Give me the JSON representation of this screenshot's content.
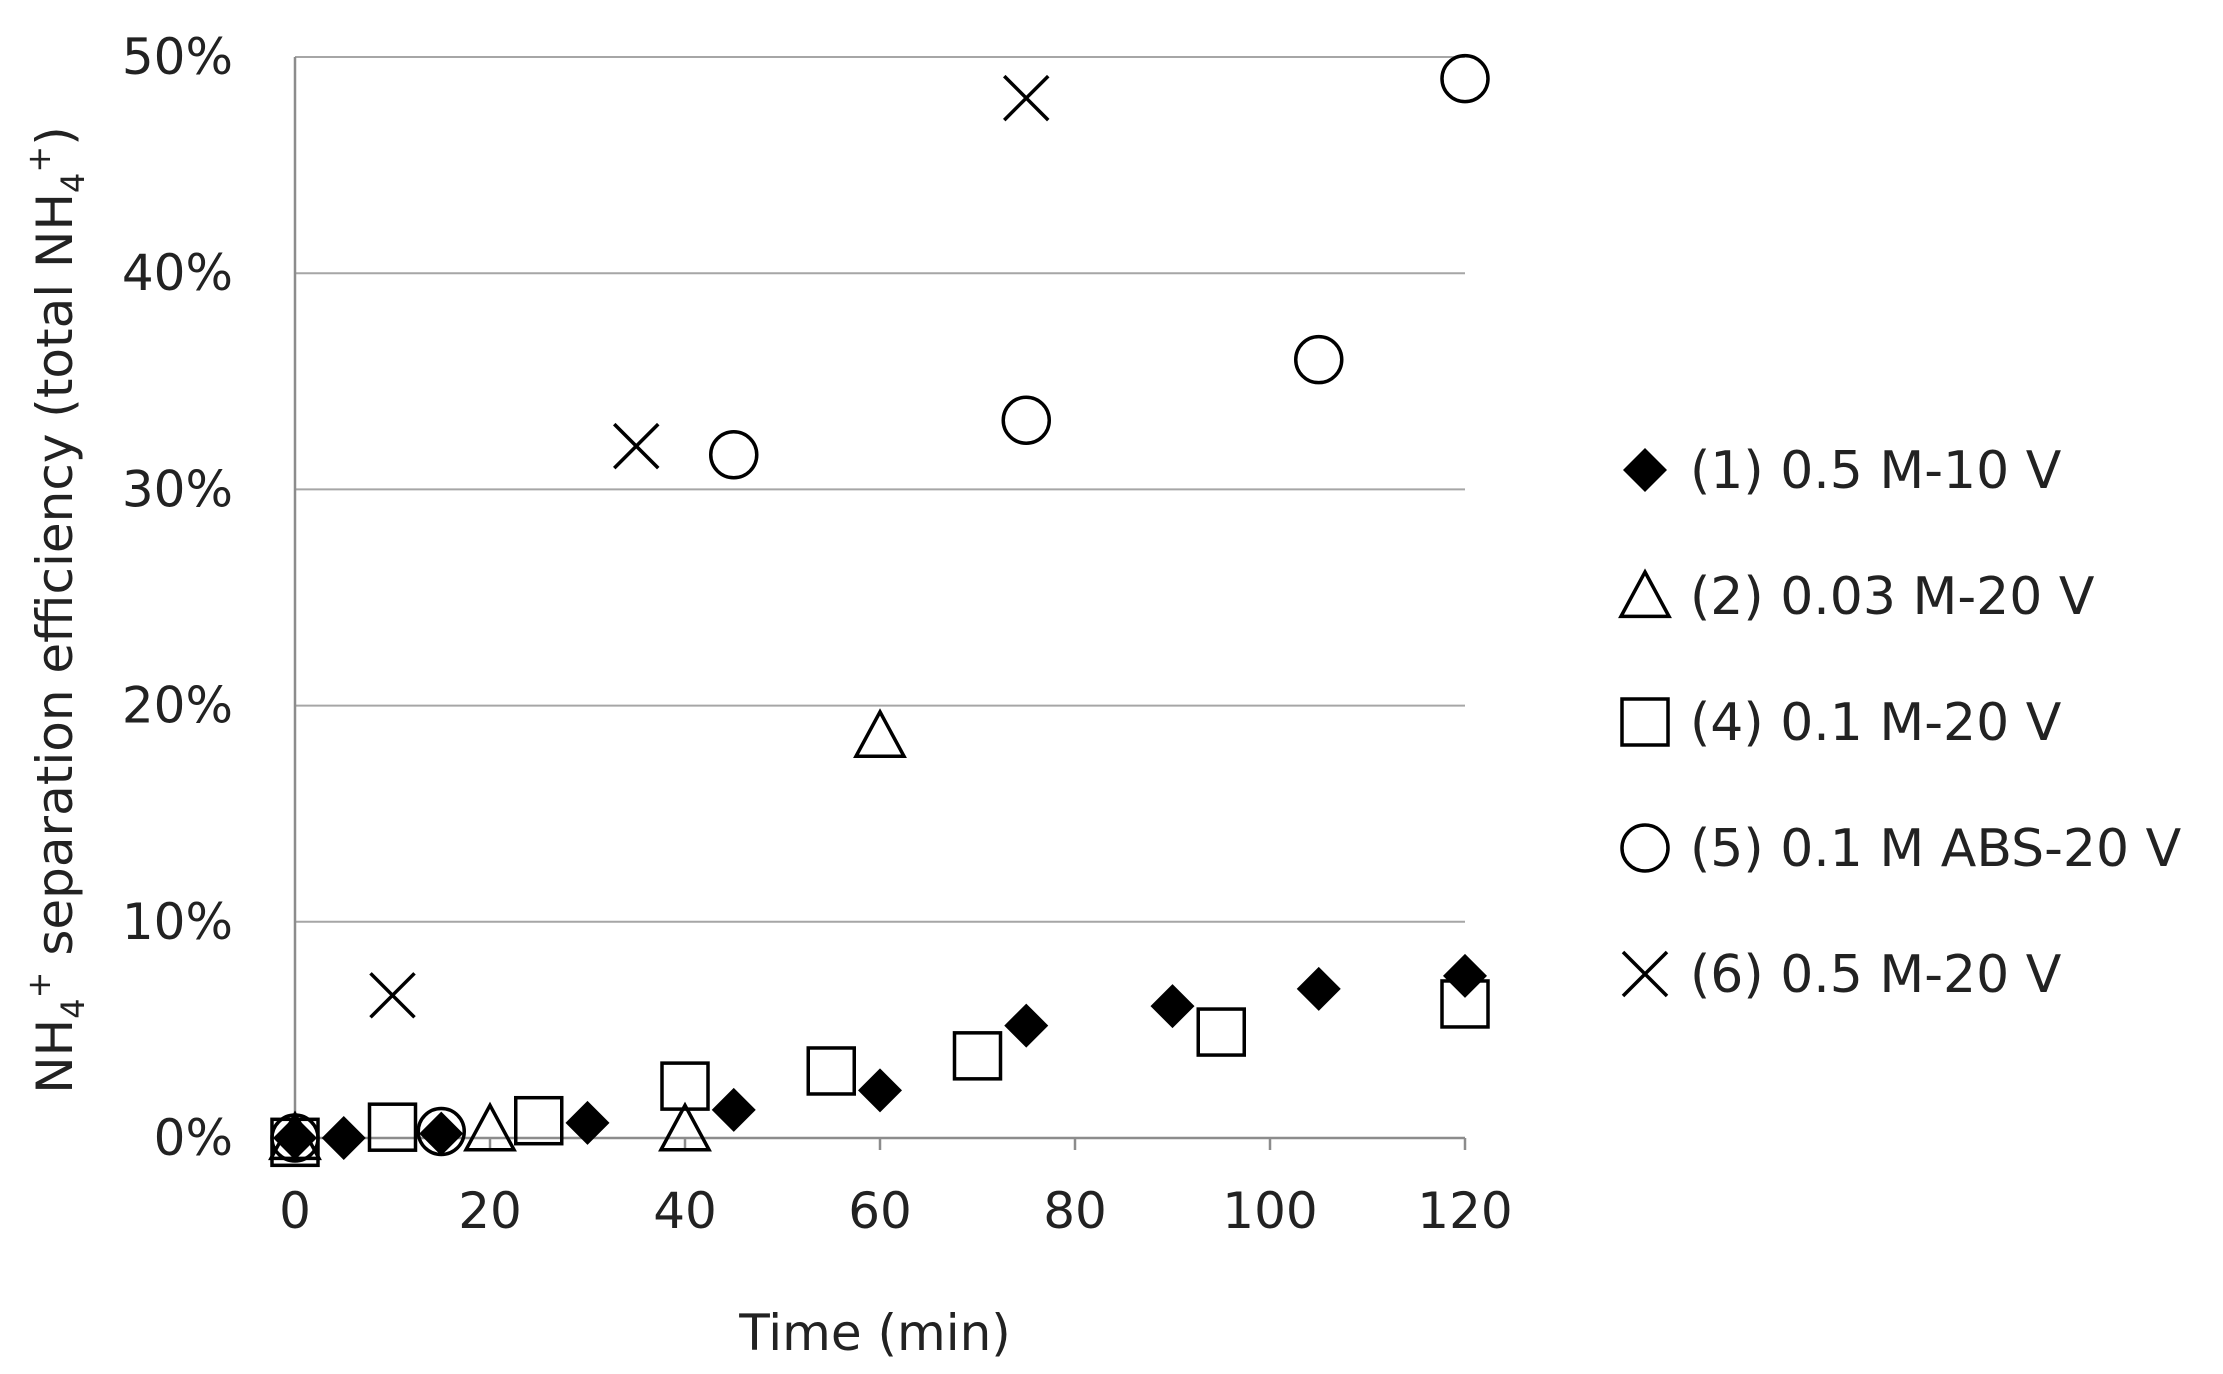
{
  "chart_data": {
    "type": "scatter",
    "title": "",
    "xlabel": "Time (min)",
    "ylabel": {
      "prefix": "NH",
      "sub1": "4",
      "sup1": "+",
      "middle": " separation efficiency (total NH",
      "sub2": "4",
      "sup2": "+",
      "suffix": ")"
    },
    "xlim": [
      0,
      120
    ],
    "ylim": [
      0,
      50
    ],
    "x_ticks": [
      0,
      20,
      40,
      60,
      80,
      100,
      120
    ],
    "x_tick_labels": [
      "0",
      "20",
      "40",
      "60",
      "80",
      "100",
      "120"
    ],
    "y_ticks": [
      0,
      10,
      20,
      30,
      40,
      50
    ],
    "y_tick_labels": [
      "0%",
      "10%",
      "20%",
      "30%",
      "40%",
      "50%"
    ],
    "grid": "horizontal",
    "legend_position": "right",
    "series": [
      {
        "name": "(1) 0.5 M-10 V",
        "marker": "filled-diamond",
        "color": "#000000",
        "points": [
          [
            0,
            0.0
          ],
          [
            5,
            0.0
          ],
          [
            15,
            0.2
          ],
          [
            30,
            0.7
          ],
          [
            45,
            1.3
          ],
          [
            60,
            2.2
          ],
          [
            75,
            5.2
          ],
          [
            90,
            6.1
          ],
          [
            105,
            6.9
          ],
          [
            120,
            7.5
          ]
        ]
      },
      {
        "name": "(2) 0.03 M-20 V",
        "marker": "open-triangle",
        "color": "#000000",
        "points": [
          [
            0,
            0.0
          ],
          [
            20,
            0.4
          ],
          [
            40,
            0.4
          ],
          [
            60,
            18.6
          ]
        ]
      },
      {
        "name": "(4) 0.1 M-20 V",
        "marker": "open-square",
        "color": "#000000",
        "points": [
          [
            0,
            -0.2
          ],
          [
            10,
            0.5
          ],
          [
            25,
            0.8
          ],
          [
            40,
            2.4
          ],
          [
            55,
            3.1
          ],
          [
            70,
            3.8
          ],
          [
            95,
            4.9
          ],
          [
            120,
            6.2
          ]
        ]
      },
      {
        "name": "(5) 0.1 M ABS-20 V",
        "marker": "open-circle",
        "color": "#000000",
        "points": [
          [
            0,
            0.0
          ],
          [
            15,
            0.3
          ],
          [
            45,
            31.6
          ],
          [
            75,
            33.2
          ],
          [
            105,
            36.0
          ],
          [
            120,
            49.0
          ]
        ]
      },
      {
        "name": "(6) 0.5 M-20 V",
        "marker": "cross",
        "color": "#000000",
        "points": [
          [
            10,
            6.6
          ],
          [
            35,
            32.0
          ],
          [
            75,
            48.1
          ]
        ]
      }
    ]
  }
}
